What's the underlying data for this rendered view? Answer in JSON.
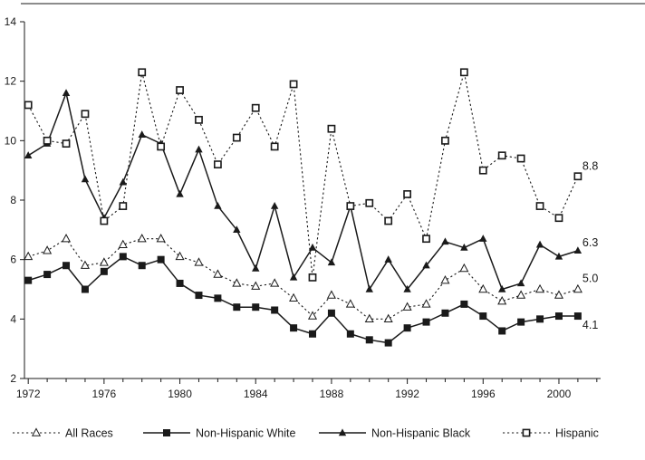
{
  "chart_data": {
    "type": "line",
    "title": "",
    "xlabel": "",
    "ylabel": "",
    "xlim": [
      1971.8,
      2002.2
    ],
    "ylim": [
      2,
      14
    ],
    "grid": false,
    "legend_position": "bottom",
    "x_ticks": [
      1972,
      1976,
      1980,
      1984,
      1988,
      1992,
      1996,
      2000
    ],
    "y_ticks": [
      2,
      4,
      6,
      8,
      10,
      12,
      14
    ],
    "x": [
      1972,
      1973,
      1974,
      1975,
      1976,
      1977,
      1978,
      1979,
      1980,
      1981,
      1982,
      1983,
      1984,
      1985,
      1986,
      1987,
      1988,
      1989,
      1990,
      1991,
      1992,
      1993,
      1994,
      1995,
      1996,
      1997,
      1998,
      1999,
      2000,
      2001
    ],
    "series": [
      {
        "key": "all_races",
        "name": "All Races",
        "line_style": "dotted",
        "marker": "triangle-open",
        "end_label": "5.0",
        "values": [
          6.1,
          6.3,
          6.7,
          5.8,
          5.9,
          6.5,
          6.7,
          6.7,
          6.1,
          5.9,
          5.5,
          5.2,
          5.1,
          5.2,
          4.7,
          4.1,
          4.8,
          4.5,
          4.0,
          4.0,
          4.4,
          4.5,
          5.3,
          5.7,
          5.0,
          4.6,
          4.8,
          5.0,
          4.8,
          5.0
        ]
      },
      {
        "key": "nh_white",
        "name": "Non-Hispanic White",
        "line_style": "solid",
        "marker": "square-filled",
        "end_label": "4.1",
        "values": [
          5.3,
          5.5,
          5.8,
          5.0,
          5.6,
          6.1,
          5.8,
          6.0,
          5.2,
          4.8,
          4.7,
          4.4,
          4.4,
          4.3,
          3.7,
          3.5,
          4.2,
          3.5,
          3.3,
          3.2,
          3.7,
          3.9,
          4.2,
          4.5,
          4.1,
          3.6,
          3.9,
          4.0,
          4.1,
          4.1
        ]
      },
      {
        "key": "nh_black",
        "name": "Non-Hispanic Black",
        "line_style": "solid",
        "marker": "triangle-filled",
        "end_label": "6.3",
        "values": [
          9.5,
          9.9,
          11.6,
          8.7,
          7.4,
          8.6,
          10.2,
          9.9,
          8.2,
          9.7,
          7.8,
          7.0,
          5.7,
          7.8,
          5.4,
          6.4,
          5.9,
          7.8,
          5.0,
          6.0,
          5.0,
          5.8,
          6.6,
          6.4,
          6.7,
          5.0,
          5.2,
          6.5,
          6.1,
          6.3
        ]
      },
      {
        "key": "hispanic",
        "name": "Hispanic",
        "line_style": "dotted",
        "marker": "square-open",
        "end_label": "8.8",
        "values": [
          11.2,
          10.0,
          9.9,
          10.9,
          7.3,
          7.8,
          12.3,
          9.8,
          11.7,
          10.7,
          9.2,
          10.1,
          11.1,
          9.8,
          11.9,
          5.4,
          10.4,
          7.8,
          7.9,
          7.3,
          8.2,
          6.7,
          10.0,
          12.3,
          9.0,
          9.5,
          9.4,
          7.8,
          7.4,
          8.8
        ]
      }
    ],
    "colors": {
      "line": "#1a1a1a",
      "axis": "#1a1a1a",
      "background": "#ffffff"
    }
  }
}
